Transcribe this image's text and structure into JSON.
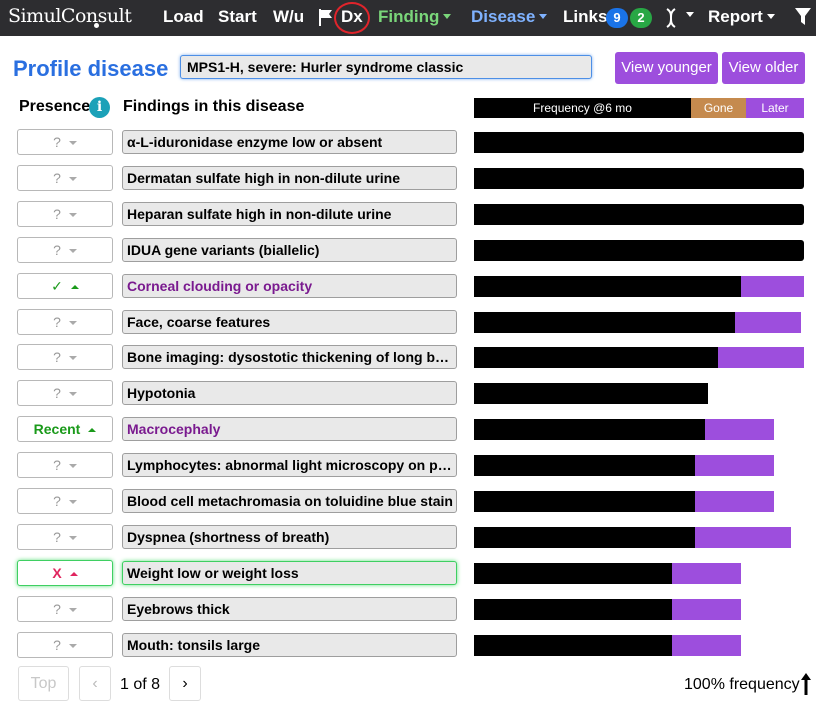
{
  "nav": {
    "logo": "SimulConsult",
    "load": "Load",
    "start": "Start",
    "wu": "W/u",
    "dx": "Dx",
    "finding": "Finding",
    "disease": "Disease",
    "links": "Links",
    "links_badge_1": "9",
    "links_badge_2": "2",
    "report": "Report",
    "icons": [
      "flag-icon",
      "dna-icon",
      "filter-icon"
    ]
  },
  "header": {
    "title": "Profile disease",
    "disease_value": "MPS1-H, severe: Hurler syndrome classic",
    "view_younger": "View younger",
    "view_older": "View older"
  },
  "columns": {
    "presence": "Presence",
    "findings": "Findings in this disease",
    "info_glyph": "i",
    "legend_frequency": "Frequency @6 mo",
    "legend_gone": "Gone",
    "legend_later": "Later"
  },
  "colors": {
    "accent_blue": "#2a6fe0",
    "purple": "#9d4edd",
    "gone": "#c58a4e",
    "present_green": "#1a9a1a",
    "absent_red": "#e0245e"
  },
  "findings": [
    {
      "presence": "?",
      "name": "α-L-iduronidase enzyme low or absent",
      "freq": 1.0,
      "later": 0.0,
      "highlight": false
    },
    {
      "presence": "?",
      "name": "Dermatan sulfate high in non-dilute urine",
      "freq": 1.0,
      "later": 0.0,
      "highlight": false
    },
    {
      "presence": "?",
      "name": "Heparan sulfate high in non-dilute urine",
      "freq": 1.0,
      "later": 0.0,
      "highlight": false
    },
    {
      "presence": "?",
      "name": "IDUA gene variants (biallelic)",
      "freq": 1.0,
      "later": 0.0,
      "highlight": false
    },
    {
      "presence": "✓",
      "name": "Corneal clouding or opacity",
      "freq": 0.81,
      "later": 0.19,
      "highlight": true
    },
    {
      "presence": "?",
      "name": "Face, coarse features",
      "freq": 0.79,
      "later": 0.2,
      "highlight": false
    },
    {
      "presence": "?",
      "name": "Bone imaging: dysostotic thickening of long bones",
      "freq": 0.74,
      "later": 0.26,
      "highlight": false
    },
    {
      "presence": "?",
      "name": "Hypotonia",
      "freq": 0.71,
      "later": 0.0,
      "highlight": false
    },
    {
      "presence": "Recent",
      "name": "Macrocephaly",
      "freq": 0.7,
      "later": 0.21,
      "highlight": true
    },
    {
      "presence": "?",
      "name": "Lymphocytes: abnormal light microscopy on peripheral smear",
      "freq": 0.67,
      "later": 0.24,
      "highlight": false
    },
    {
      "presence": "?",
      "name": "Blood cell metachromasia on toluidine blue stain",
      "freq": 0.67,
      "later": 0.24,
      "highlight": false
    },
    {
      "presence": "?",
      "name": "Dyspnea (shortness of breath)",
      "freq": 0.67,
      "later": 0.29,
      "highlight": false
    },
    {
      "presence": "X",
      "name": "Weight low or weight loss",
      "freq": 0.6,
      "later": 0.21,
      "highlight": false
    },
    {
      "presence": "?",
      "name": "Eyebrows thick",
      "freq": 0.6,
      "later": 0.21,
      "highlight": false
    },
    {
      "presence": "?",
      "name": "Mouth: tonsils large",
      "freq": 0.6,
      "later": 0.21,
      "highlight": false
    }
  ],
  "footer": {
    "top": "Top",
    "prev": "‹",
    "page_info": "1 of 8",
    "next": "›",
    "frequency_label": "100% frequency"
  }
}
